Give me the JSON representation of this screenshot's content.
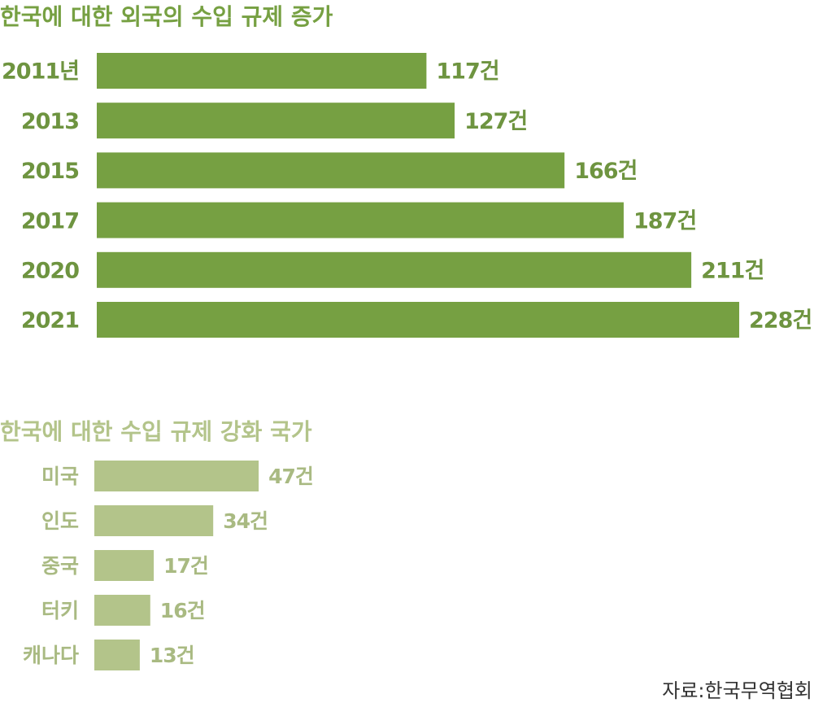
{
  "chart_data": [
    {
      "type": "bar",
      "orientation": "horizontal",
      "title": "한국에 대한 외국의 수입 규제 증가",
      "categories": [
        "2011년",
        "2013",
        "2015",
        "2017",
        "2020",
        "2021"
      ],
      "values": [
        117,
        127,
        166,
        187,
        211,
        228
      ],
      "value_labels": [
        "117건",
        "127건",
        "166건",
        "187건",
        "211건",
        "228건"
      ],
      "color": "#76a042"
    },
    {
      "type": "bar",
      "orientation": "horizontal",
      "title": "한국에 대한 수입 규제 강화 국가",
      "categories": [
        "미국",
        "인도",
        "중국",
        "터키",
        "캐나다"
      ],
      "values": [
        47,
        34,
        17,
        16,
        13
      ],
      "value_labels": [
        "47건",
        "34건",
        "17건",
        "16건",
        "13건"
      ],
      "color": "#b3c48a"
    }
  ],
  "source": "자료:한국무역협회"
}
